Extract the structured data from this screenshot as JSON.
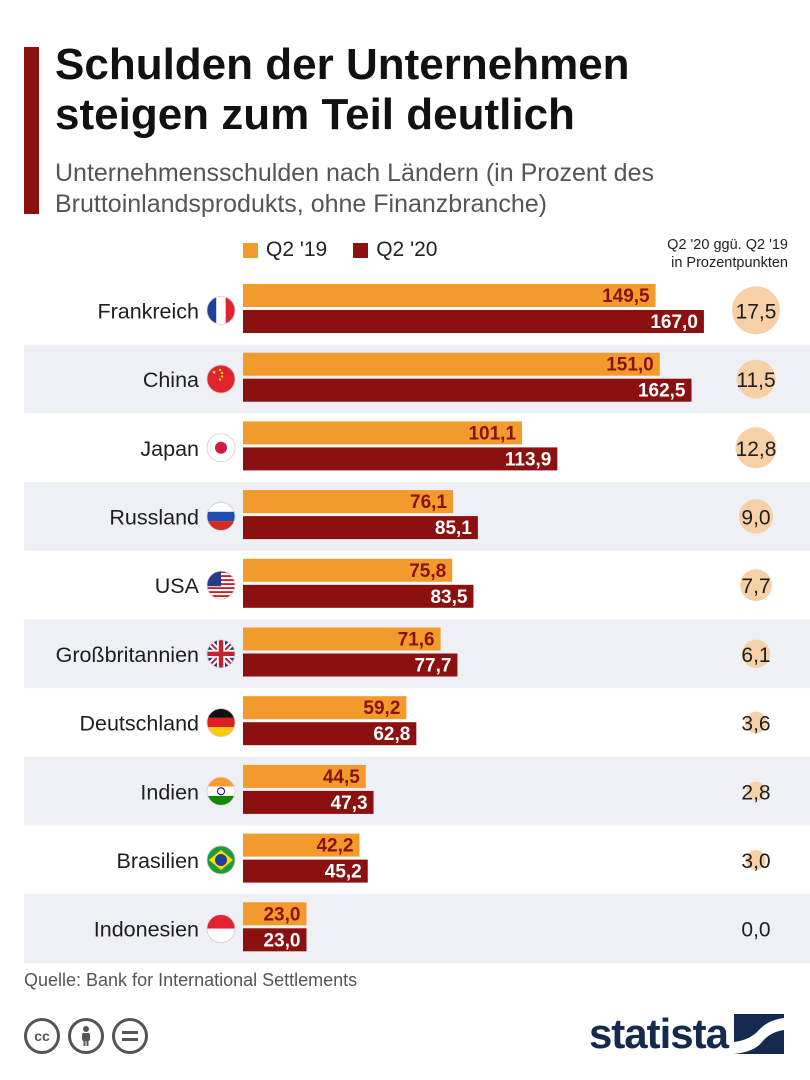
{
  "header": {
    "title": "Schulden der Unternehmen steigen zum Teil deutlich",
    "subtitle": "Unternehmensschulden nach Ländern (in Prozent des Bruttoinlandsprodukts, ohne Finanzbranche)"
  },
  "legend": {
    "q219": "Q2 '19",
    "q220": "Q2 '20",
    "diff_header_line1": "Q2 '20 ggü. Q2 '19",
    "diff_header_line2": "in Prozentpunkten"
  },
  "colors": {
    "q219": "#f39a2d",
    "q220": "#8b1010",
    "label_q219": "#8b1010",
    "label_q220": "#ffffff",
    "stripe": "#eef0f6",
    "bubble": "#f6d1a8"
  },
  "chart_data": {
    "type": "bar",
    "orientation": "horizontal",
    "categories": [
      "Frankreich",
      "China",
      "Japan",
      "Russland",
      "USA",
      "Großbritannien",
      "Deutschland",
      "Indien",
      "Brasilien",
      "Indonesien"
    ],
    "series": [
      {
        "name": "Q2 '19",
        "values": [
          149.5,
          151.0,
          101.1,
          76.1,
          75.8,
          71.6,
          59.2,
          44.5,
          42.2,
          23.0
        ],
        "labels": [
          "149,5",
          "151,0",
          "101,1",
          "76,1",
          "75,8",
          "71,6",
          "59,2",
          "44,5",
          "42,2",
          "23,0"
        ]
      },
      {
        "name": "Q2 '20",
        "values": [
          167.0,
          162.5,
          113.9,
          85.1,
          83.5,
          77.7,
          62.8,
          47.3,
          45.2,
          23.0
        ],
        "labels": [
          "167,0",
          "162,5",
          "113,9",
          "85,1",
          "83,5",
          "77,7",
          "62,8",
          "47,3",
          "45,2",
          "23,0"
        ]
      }
    ],
    "difference": {
      "name": "Q2 '20 ggü. Q2 '19 in Prozentpunkten",
      "values": [
        17.5,
        11.5,
        12.8,
        9.0,
        7.7,
        6.1,
        3.6,
        2.8,
        3.0,
        0.0
      ],
      "labels": [
        "17,5",
        "11,5",
        "12,8",
        "9,0",
        "7,7",
        "6,1",
        "3,6",
        "2,8",
        "3,0",
        "0,0"
      ]
    },
    "flags": [
      "flag-france-icon",
      "flag-china-icon",
      "flag-japan-icon",
      "flag-russia-icon",
      "flag-usa-icon",
      "flag-uk-icon",
      "flag-germany-icon",
      "flag-india-icon",
      "flag-brazil-icon",
      "flag-indonesia-icon"
    ],
    "xlim": [
      0,
      170
    ],
    "grid": false,
    "legend_position": "top"
  },
  "footer": {
    "source": "Quelle: Bank for International Settlements",
    "brand": "statista",
    "license_icons": [
      "cc-icon",
      "attribution-icon",
      "no-derivatives-icon"
    ]
  }
}
